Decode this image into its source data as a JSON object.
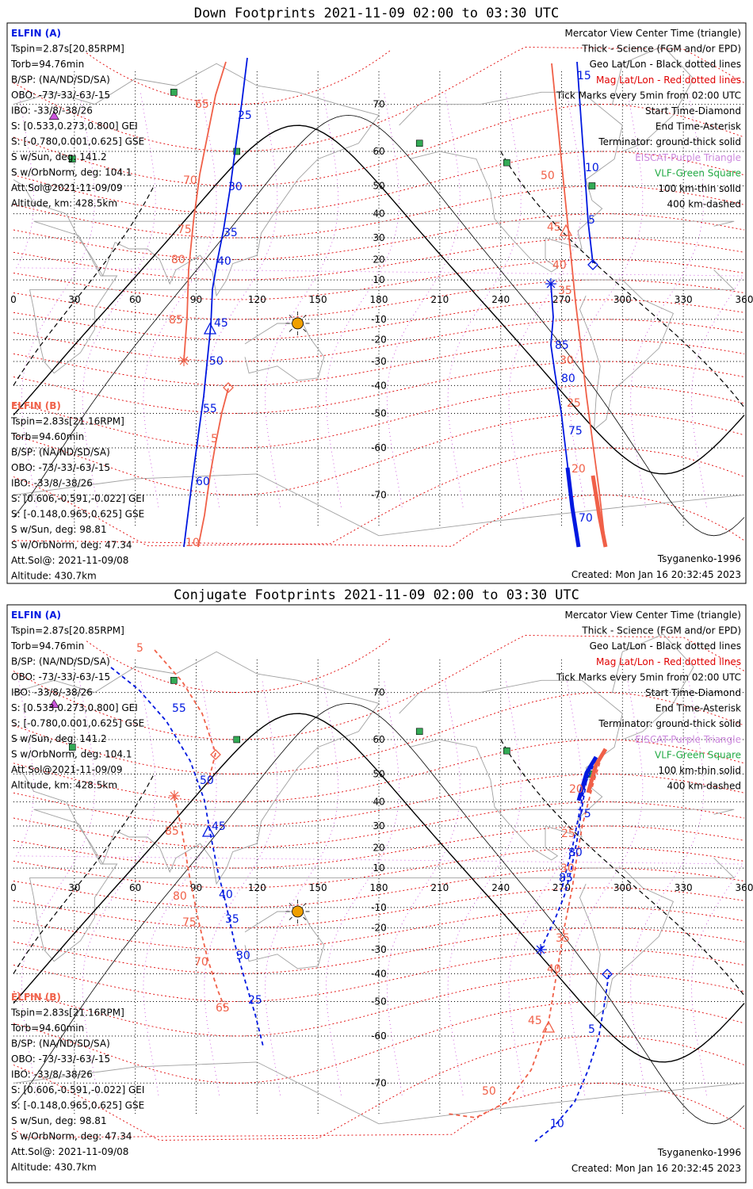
{
  "panels": [
    {
      "id": "down",
      "title": "Down Footprints 2021-11-09 02:00 to 03:30 UTC",
      "elfin_a": {
        "header": "ELFIN (A)",
        "lines": [
          "Tspin=2.87s[20.85RPM]",
          "Torb=94.76min",
          "B/SP: (NA/ND/SD/SA)",
          "OBO: -73/-33/-63/-15",
          "IBO: -33/8/-38/26",
          "S: [0.533,0.273,0.800] GEI",
          "S: [-0.780,0.001,0.625] GSE",
          "S w/Sun, deg: 141.2",
          "S w/OrbNorm, deg: 104.1",
          "Att.Sol@2021-11-09/09",
          "Altitude, km: 428.5km"
        ]
      },
      "elfin_b": {
        "header": "ELFIN (B)",
        "lines": [
          "Tspin=2.83s[21.16RPM]",
          "Torb=94.60min",
          "B/SP: (NA/ND/SD/SA)",
          "OBO: -73/-33/-63/-15",
          "IBO: -33/8/-38/26",
          "S: [0.606,-0.591,-0.022] GEI",
          "S: [-0.148,0.965,0.625] GSE",
          "S w/Sun, deg: 98.81",
          "S w/OrbNorm, deg: 47.34",
          "Att.Sol@: 2021-11-09/08",
          "Altitude: 430.7km"
        ]
      },
      "legend": [
        {
          "text": "Mercator View Center Time (triangle)",
          "color": "#000000"
        },
        {
          "text": "Thick - Science (FGM and/or EPD)",
          "color": "#000000"
        },
        {
          "text": "Geo Lat/Lon - Black dotted lines",
          "color": "#000000"
        },
        {
          "text": "Mag Lat/Lon - Red dotted lines",
          "color": "#e00000"
        },
        {
          "text": "Tick Marks every 5min from 02:00 UTC",
          "color": "#000000"
        },
        {
          "text": "Start Time-Diamond",
          "color": "#000000"
        },
        {
          "text": "End Time-Asterisk",
          "color": "#000000"
        },
        {
          "text": "Terminator: ground-thick solid",
          "color": "#000000"
        },
        {
          "text": "EISCAT-Purple Triangle",
          "color": "#cc88dd"
        },
        {
          "text": "VLF-Green Square",
          "color": "#22aa44"
        },
        {
          "text": "100 km-thin solid",
          "color": "#000000"
        },
        {
          "text": "400 km-dashed",
          "color": "#000000"
        }
      ],
      "model": "Tsyganenko-1996",
      "created": "Created: Mon Jan 16 20:32:45 2023",
      "track_a_labels": [
        "25",
        "30",
        "35",
        "40",
        "45",
        "50",
        "55",
        "60",
        "5",
        "10",
        "15",
        "70",
        "75",
        "80",
        "85"
      ],
      "track_b_labels": [
        "65",
        "70",
        "75",
        "80",
        "85",
        "5",
        "10",
        "50",
        "45",
        "40",
        "35",
        "30",
        "25",
        "20"
      ]
    },
    {
      "id": "conj",
      "title": "Conjugate Footprints 2021-11-09 02:00 to 03:30 UTC",
      "elfin_a": {
        "header": "ELFIN (A)",
        "lines": [
          "Tspin=2.87s[20.85RPM]",
          "Torb=94.76min",
          "B/SP: (NA/ND/SD/SA)",
          "OBO: -73/-33/-63/-15",
          "IBO: -33/8/-38/26",
          "S: [0.533,0.273,0.800] GEI",
          "S: [-0.780,0.001,0.625] GSE",
          "S w/Sun, deg: 141.2",
          "S w/OrbNorm, deg: 104.1",
          "Att.Sol@2021-11-09/09",
          "Altitude, km: 428.5km"
        ]
      },
      "elfin_b": {
        "header": "ELFIN (B)",
        "lines": [
          "Tspin=2.83s[21.16RPM]",
          "Torb=94.60min",
          "B/SP: (NA/ND/SD/SA)",
          "OBO: -73/-33/-63/-15",
          "IBO: -33/8/-38/26",
          "S: [0.606,-0.591,-0.022] GEI",
          "S: [-0.148,0.965,0.625] GSE",
          "S w/Sun, deg: 98.81",
          "S w/OrbNorm, deg: 47.34",
          "Att.Sol@: 2021-11-09/08",
          "Altitude: 430.7km"
        ]
      },
      "legend": [
        {
          "text": "Mercator View Center Time (triangle)",
          "color": "#000000"
        },
        {
          "text": "Thick - Science (FGM and/or EPD)",
          "color": "#000000"
        },
        {
          "text": "Geo Lat/Lon - Black dotted lines",
          "color": "#000000"
        },
        {
          "text": "Mag Lat/Lon - Red dotted lines",
          "color": "#e00000"
        },
        {
          "text": "Tick Marks every 5min from 02:00 UTC",
          "color": "#000000"
        },
        {
          "text": "Start Time-Diamond",
          "color": "#000000"
        },
        {
          "text": "End Time-Asterisk",
          "color": "#000000"
        },
        {
          "text": "Terminator: ground-thick solid",
          "color": "#000000"
        },
        {
          "text": "EISCAT-Purple Triangle",
          "color": "#cc88dd"
        },
        {
          "text": "VLF-Green Square",
          "color": "#22aa44"
        },
        {
          "text": "100 km-thin solid",
          "color": "#000000"
        },
        {
          "text": "400 km-dashed",
          "color": "#000000"
        }
      ],
      "model": "Tsyganenko-1996",
      "created": "Created: Mon Jan 16 20:32:45 2023",
      "track_a_labels": [
        "55",
        "50",
        "45",
        "40",
        "35",
        "30",
        "25",
        "75",
        "80",
        "85",
        "5",
        "10"
      ],
      "track_b_labels": [
        "5",
        "85",
        "80",
        "75",
        "70",
        "65",
        "20",
        "25",
        "30",
        "35",
        "40",
        "45",
        "50"
      ]
    }
  ],
  "map": {
    "lon_ticks": [
      "0",
      "30",
      "60",
      "90",
      "120",
      "150",
      "180",
      "210",
      "240",
      "270",
      "300",
      "330",
      "360"
    ],
    "lat_ticks": [
      "70",
      "60",
      "50",
      "40",
      "30",
      "20",
      "10",
      "0",
      "-10",
      "-20",
      "-30",
      "-40",
      "-50",
      "-60",
      "-70"
    ]
  },
  "colors": {
    "elfin_a": "#0018e0",
    "elfin_b": "#f06048",
    "geo_grid": "#000000",
    "mag_grid": "#e00000",
    "eiscat": "#cc55dd",
    "vlf": "#33aa55",
    "sun": "#f0a000",
    "coast": "#a0a0a0"
  }
}
